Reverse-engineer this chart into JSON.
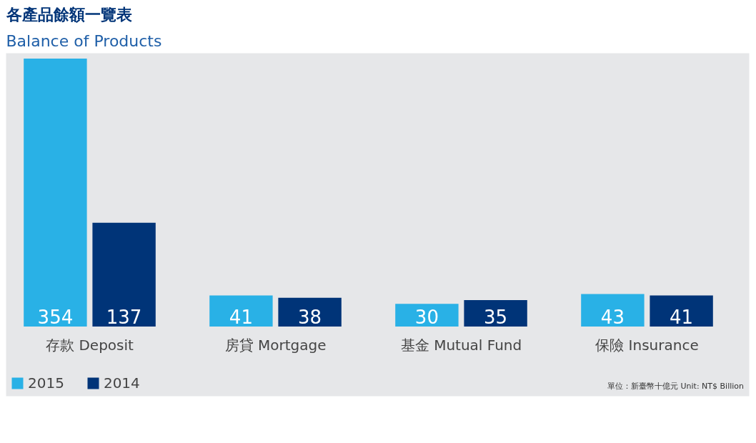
{
  "chart_data": {
    "type": "bar",
    "title": "各產品餘額一覽表",
    "subtitle": "Balance of Products",
    "categories": [
      "存款 Deposit",
      "房貸 Mortgage",
      "基金 Mutual Fund",
      "保險 Insurance"
    ],
    "series": [
      {
        "name": "2015",
        "color": "#29b1e6",
        "values": [
          354,
          41,
          30,
          43
        ]
      },
      {
        "name": "2014",
        "color": "#003478",
        "values": [
          137,
          38,
          35,
          41
        ]
      }
    ],
    "data_labels": true,
    "legend": "bottom left",
    "annotations": [
      "單位：新臺幣十億元  Unit: NT$ Billion"
    ]
  }
}
